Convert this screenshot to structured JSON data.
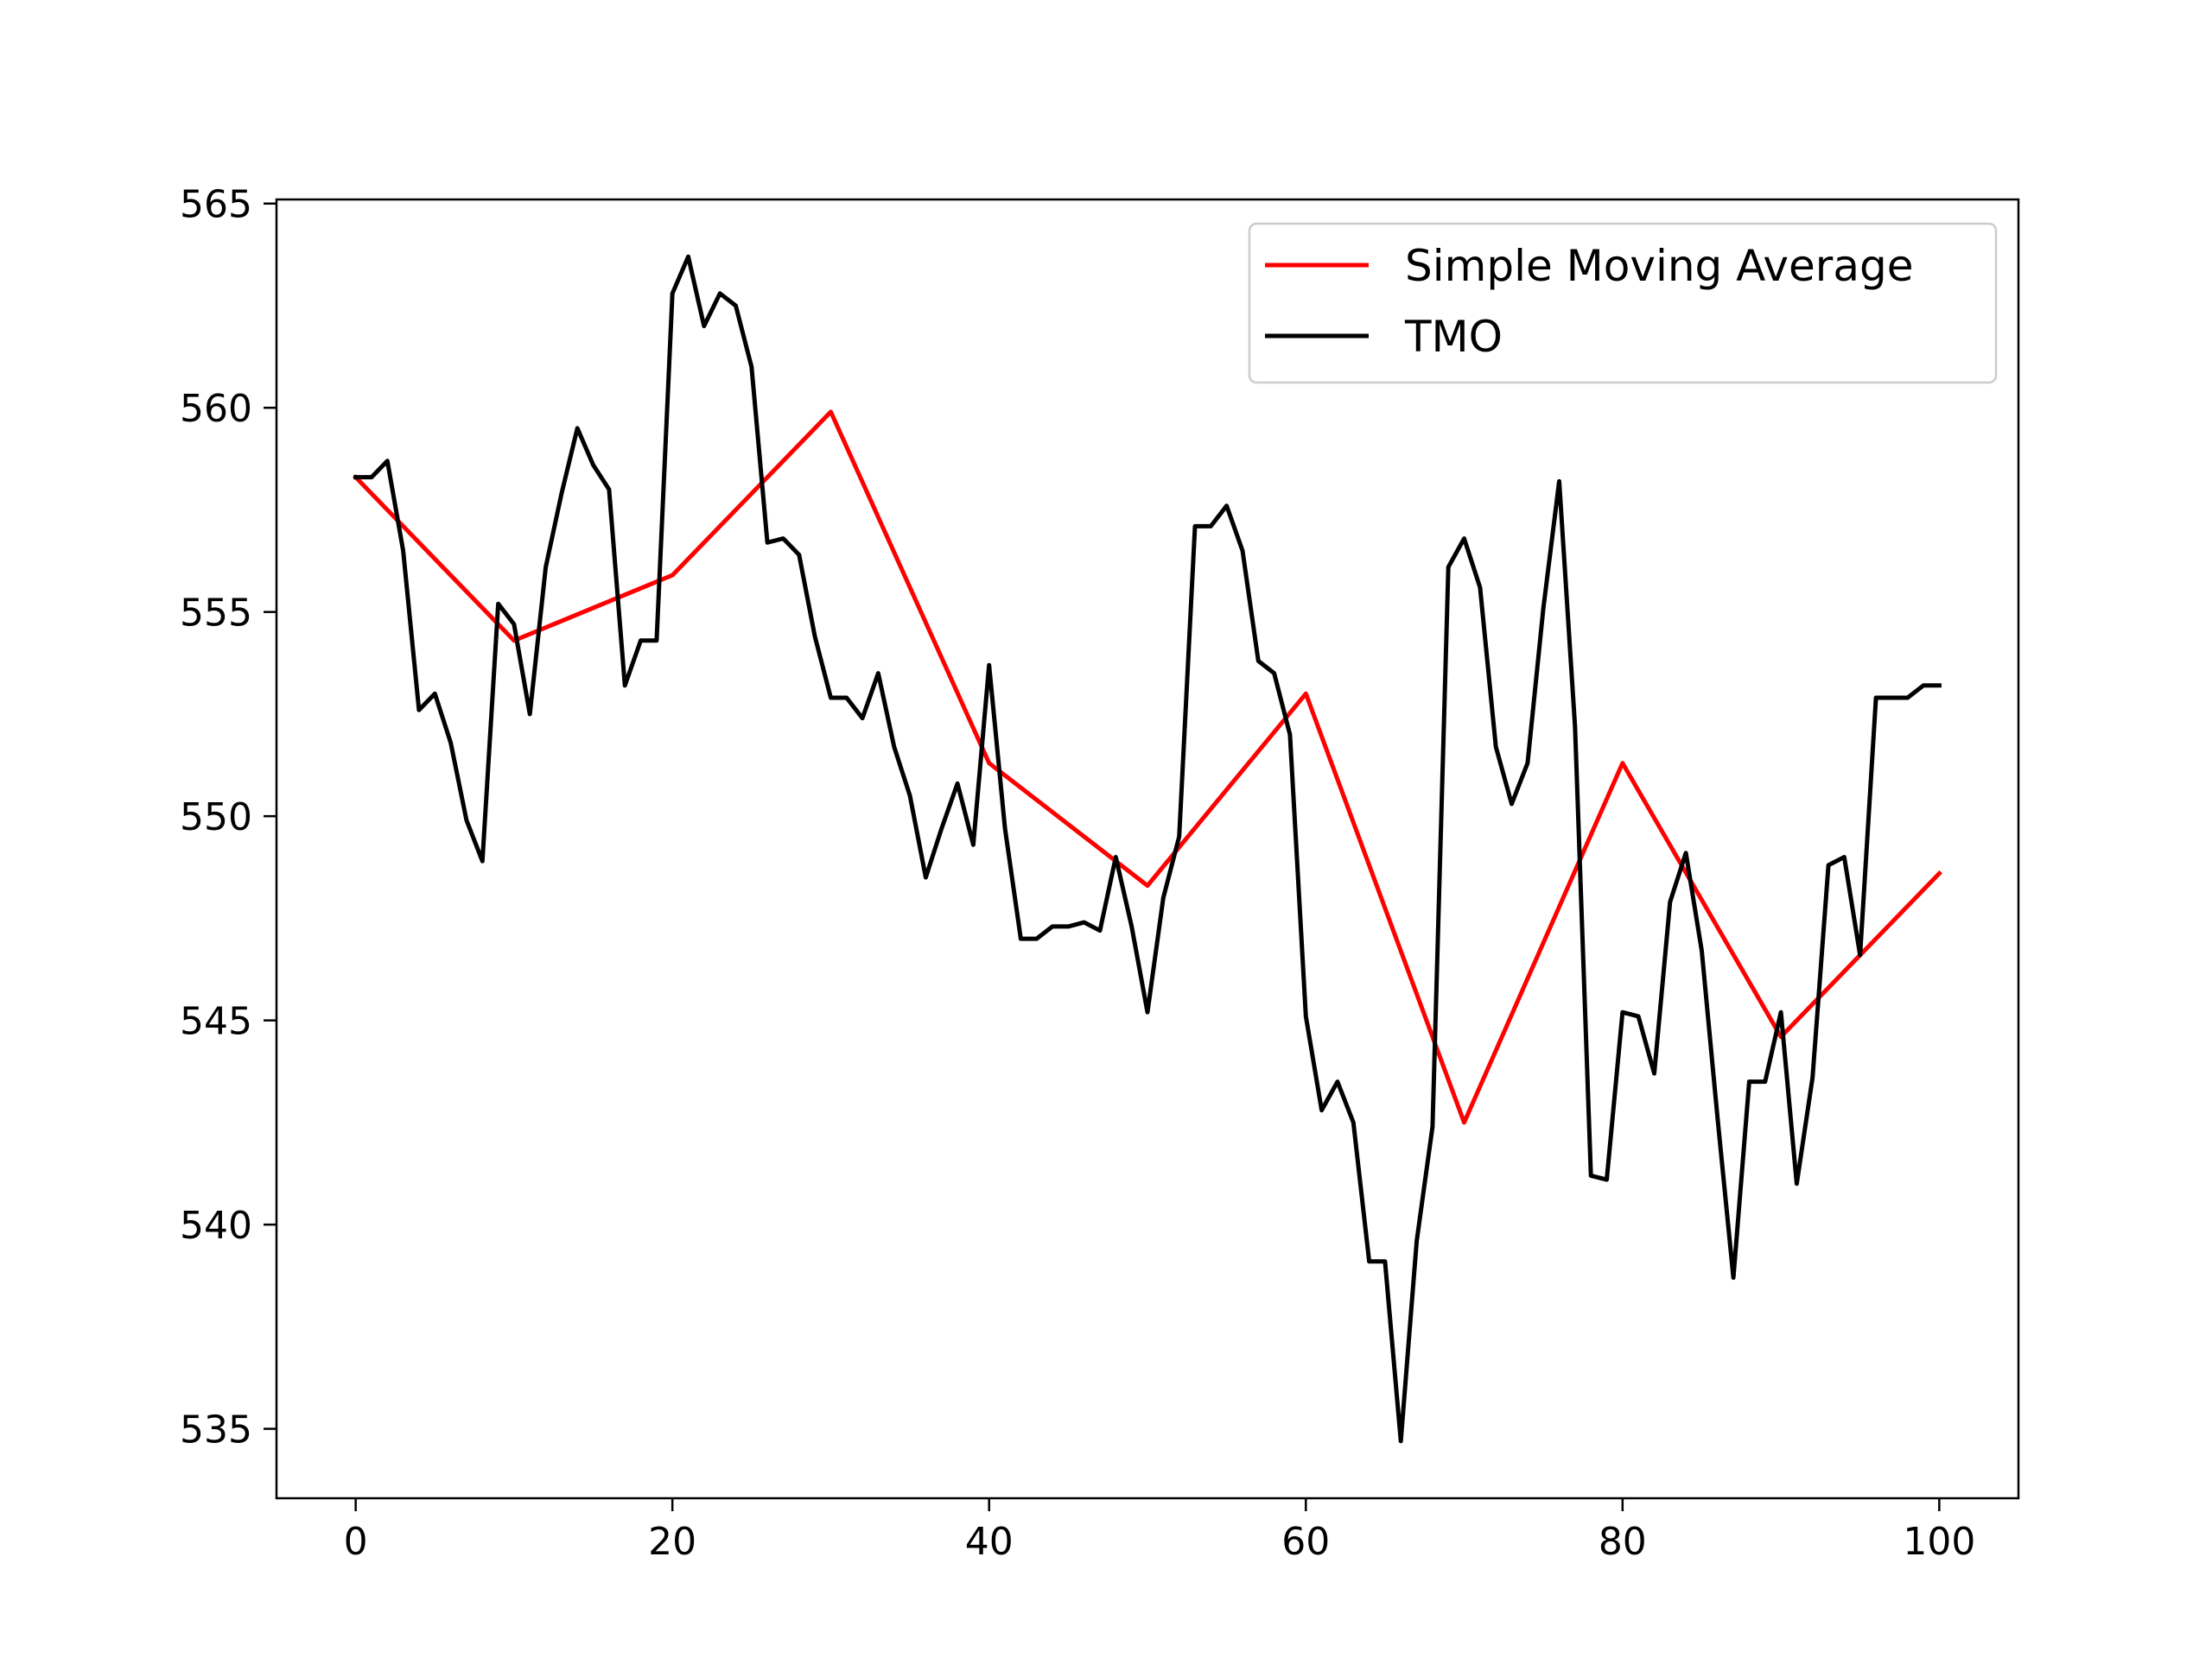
{
  "chart_data": {
    "type": "line",
    "title": "",
    "xlabel": "",
    "ylabel": "",
    "xlim": [
      -5,
      105
    ],
    "ylim": [
      533.3,
      565.1
    ],
    "x_ticks": [
      0,
      20,
      40,
      60,
      80,
      100
    ],
    "y_ticks": [
      535,
      540,
      545,
      550,
      555,
      560,
      565
    ],
    "grid": false,
    "legend": {
      "placement": "upper right",
      "entries": [
        "Simple Moving Average",
        "TMO"
      ]
    },
    "series": [
      {
        "name": "Simple Moving Average",
        "color": "#ff0000",
        "x": [
          0,
          10,
          20,
          30,
          40,
          50,
          60,
          70,
          80,
          90,
          100
        ],
        "values": [
          558.3,
          554.3,
          555.9,
          559.9,
          551.3,
          548.3,
          553.0,
          542.5,
          551.3,
          544.6,
          548.6
        ]
      },
      {
        "name": "TMO",
        "color": "#000000",
        "x": [
          0,
          1,
          2,
          3,
          4,
          5,
          6,
          7,
          8,
          9,
          10,
          11,
          12,
          13,
          14,
          15,
          16,
          17,
          18,
          19,
          20,
          21,
          22,
          23,
          24,
          25,
          26,
          27,
          28,
          29,
          30,
          31,
          32,
          33,
          34,
          35,
          36,
          37,
          38,
          39,
          40,
          41,
          42,
          43,
          44,
          45,
          46,
          47,
          48,
          49,
          50,
          51,
          52,
          53,
          54,
          55,
          56,
          57,
          58,
          59,
          60,
          61,
          62,
          63,
          64,
          65,
          66,
          67,
          68,
          69,
          70,
          71,
          72,
          73,
          74,
          75,
          76,
          77,
          78,
          79,
          80,
          81,
          82,
          83,
          84,
          85,
          86,
          87,
          88,
          89,
          90,
          91,
          92,
          93,
          94,
          95,
          96,
          97,
          98,
          99,
          100
        ],
        "values": [
          558.3,
          558.3,
          558.7,
          556.5,
          552.6,
          553.0,
          551.8,
          549.9,
          548.9,
          555.2,
          554.7,
          552.5,
          556.1,
          557.9,
          559.5,
          558.6,
          558.0,
          553.2,
          554.3,
          554.3,
          562.8,
          563.7,
          562.0,
          562.8,
          562.5,
          561.0,
          556.7,
          556.8,
          556.4,
          554.4,
          552.9,
          552.9,
          552.4,
          553.5,
          551.7,
          550.5,
          548.5,
          549.7,
          550.8,
          549.3,
          553.7,
          549.7,
          547.0,
          547.0,
          547.3,
          547.3,
          547.4,
          547.2,
          549.0,
          547.3,
          545.2,
          548.0,
          549.5,
          557.1,
          557.1,
          557.6,
          556.5,
          553.8,
          553.5,
          552.0,
          545.1,
          542.8,
          543.5,
          542.5,
          539.1,
          539.1,
          534.7,
          539.6,
          542.4,
          556.1,
          556.8,
          555.6,
          551.7,
          550.3,
          551.3,
          555.1,
          558.2,
          552.2,
          541.2,
          541.1,
          545.2,
          545.1,
          543.7,
          547.9,
          549.1,
          546.7,
          542.6,
          538.7,
          543.5,
          543.5,
          545.2,
          541.0,
          543.6,
          548.8,
          549.0,
          546.6,
          552.9,
          552.9,
          552.9,
          553.2,
          553.2
        ]
      }
    ]
  }
}
